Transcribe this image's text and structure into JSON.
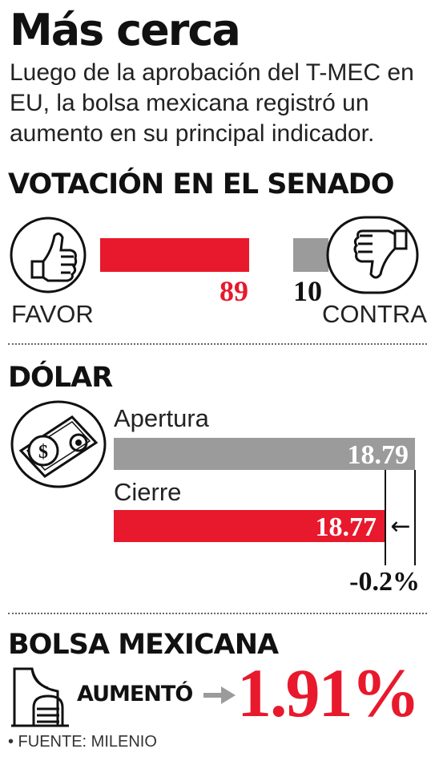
{
  "header": {
    "title": "Más cerca",
    "subtitle": "Luego de la aprobación del T-MEC en EU, la bolsa mexicana registró un aumento en su principal indicador."
  },
  "senate": {
    "heading": "VOTACIÓN EN EL SENADO",
    "favor_label": "FAVOR",
    "contra_label": "CONTRA",
    "favor_value": "89",
    "contra_value": "10"
  },
  "dollar": {
    "heading": "DÓLAR",
    "open_label": "Apertura",
    "close_label": "Cierre",
    "open_value": "18.79",
    "close_value": "18.77",
    "change": "-0.2%",
    "arrow": "←"
  },
  "stock": {
    "heading": "BOLSA MEXICANA",
    "label": "AUMENTÓ",
    "value": "1.91%"
  },
  "source": "• FUENTE: MILENIO",
  "colors": {
    "red": "#e8192c",
    "gray": "#9b9b9b",
    "ink": "#111111"
  },
  "chart_data": [
    {
      "type": "bar",
      "title": "VOTACIÓN EN EL SENADO",
      "categories": [
        "FAVOR",
        "CONTRA"
      ],
      "values": [
        89,
        10
      ]
    },
    {
      "type": "bar",
      "title": "DÓLAR",
      "categories": [
        "Apertura",
        "Cierre"
      ],
      "values": [
        18.79,
        18.77
      ],
      "annotations": [
        "-0.2%"
      ]
    }
  ]
}
